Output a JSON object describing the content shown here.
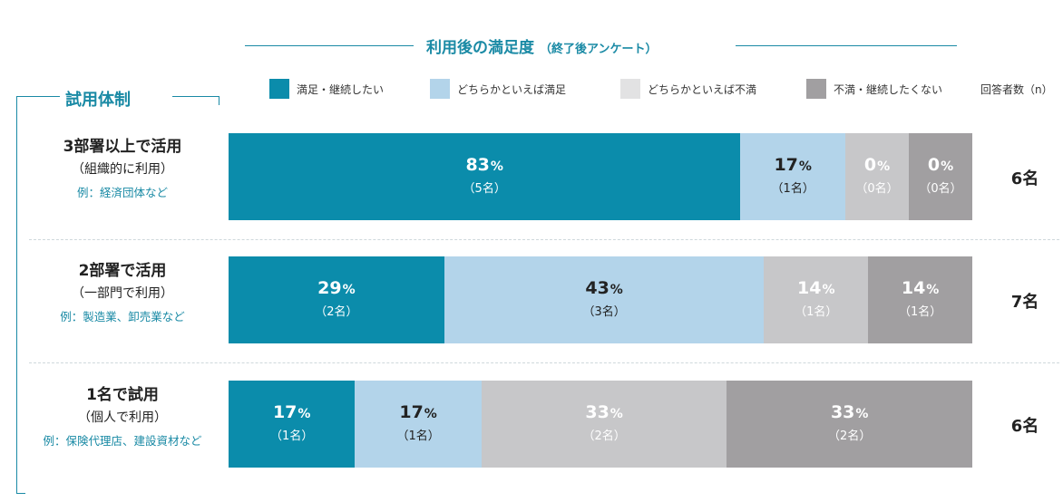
{
  "title": "利用後の満足度",
  "title_sub": "（終了後アンケート）",
  "system_label": "試用体制",
  "n_header": "回答者数（n）",
  "colors": {
    "accent": "#1a8aa5",
    "satisfied_continue": "#0b8cab",
    "somewhat_satisfied": "#b3d4ea",
    "somewhat_dissatisfied": "#c7c7c9",
    "dissatisfied_discontinue": "#a19fa1"
  },
  "legend": [
    {
      "label": "満足・継続したい",
      "color": "#0b8cab"
    },
    {
      "label": "どちらかといえば満足",
      "color": "#b3d4ea"
    },
    {
      "label": "どちらかといえば不満",
      "color": "#e2e2e3"
    },
    {
      "label": "不満・継続したくない",
      "color": "#a19fa1"
    }
  ],
  "rows": [
    {
      "title": "3部署以上で活用",
      "sub": "（組織的に利用）",
      "example": "例：経済団体など",
      "n": "6名"
    },
    {
      "title": "2部署で活用",
      "sub": "（一部門で利用）",
      "example": "例：製造業、卸売業など",
      "n": "7名"
    },
    {
      "title": "1名で試用",
      "sub": "（個人で利用）",
      "example": "例：保険代理店、建設資材など",
      "n": "6名"
    }
  ],
  "chart_data": {
    "type": "bar",
    "stacked": true,
    "orientation": "horizontal",
    "normalized_percent": true,
    "title": "利用後の満足度（終了後アンケート）",
    "categories": [
      "3部署以上で活用",
      "2部署で活用",
      "1名で試用"
    ],
    "n": [
      "6名",
      "7名",
      "6名"
    ],
    "series": [
      {
        "name": "満足・継続したい",
        "values": [
          83,
          29,
          17
        ],
        "counts": [
          "（5名）",
          "（2名）",
          "（1名）"
        ]
      },
      {
        "name": "どちらかといえば満足",
        "values": [
          17,
          43,
          17
        ],
        "counts": [
          "（1名）",
          "（3名）",
          "（1名）"
        ]
      },
      {
        "name": "どちらかといえば不満",
        "values": [
          0,
          14,
          33
        ],
        "counts": [
          "（0名）",
          "（1名）",
          "（2名）"
        ]
      },
      {
        "name": "不満・継続したくない",
        "values": [
          0,
          14,
          33
        ],
        "counts": [
          "（0名）",
          "（1名）",
          "（2名）"
        ]
      }
    ]
  }
}
